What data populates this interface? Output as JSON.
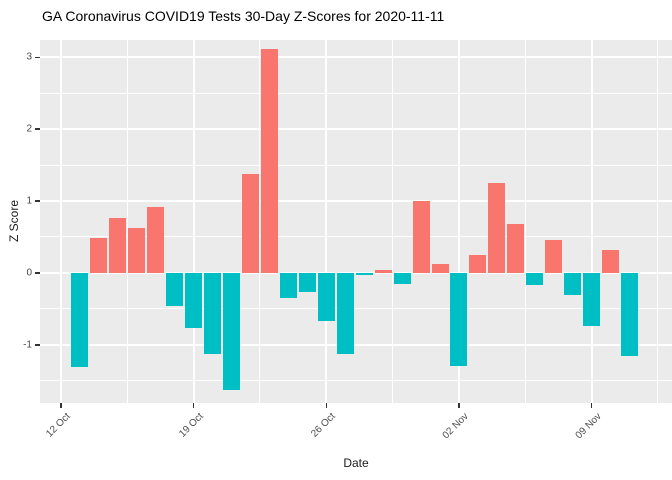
{
  "title": "GA Coronavirus COVID19 Tests 30-Day Z-Scores for 2020-11-11",
  "chart_data": {
    "type": "bar",
    "title": "GA Coronavirus COVID19 Tests 30-Day Z-Scores for 2020-11-11",
    "xlabel": "Date",
    "ylabel": "Z Score",
    "legend_position": "none",
    "grid": "major and minor white gridlines on grey panel",
    "ylim": [
      -1.81,
      3.24
    ],
    "y_major_ticks": [
      3,
      2,
      1,
      0,
      -1
    ],
    "y_minor_ticks": [
      2.5,
      1.5,
      0.5,
      -0.5,
      -1.5
    ],
    "x_ticks": [
      {
        "label": "12 Oct",
        "day": 0
      },
      {
        "label": "19 Oct",
        "day": 7
      },
      {
        "label": "26 Oct",
        "day": 14
      },
      {
        "label": "02 Nov",
        "day": 21
      },
      {
        "label": "09 Nov",
        "day": 28
      }
    ],
    "bars": [
      {
        "date": "13 Oct",
        "day": 1,
        "value": -1.31
      },
      {
        "date": "14 Oct",
        "day": 2,
        "value": 0.49
      },
      {
        "date": "15 Oct",
        "day": 3,
        "value": 0.77
      },
      {
        "date": "16 Oct",
        "day": 4,
        "value": 0.62
      },
      {
        "date": "17 Oct",
        "day": 5,
        "value": 0.92
      },
      {
        "date": "18 Oct",
        "day": 6,
        "value": -0.46
      },
      {
        "date": "19 Oct",
        "day": 7,
        "value": -0.76
      },
      {
        "date": "20 Oct",
        "day": 8,
        "value": -1.13
      },
      {
        "date": "21 Oct",
        "day": 9,
        "value": -1.63
      },
      {
        "date": "22 Oct",
        "day": 10,
        "value": 1.38
      },
      {
        "date": "23 Oct",
        "day": 11,
        "value": 3.11
      },
      {
        "date": "24 Oct",
        "day": 12,
        "value": -0.35
      },
      {
        "date": "25 Oct",
        "day": 13,
        "value": -0.27
      },
      {
        "date": "26 Oct",
        "day": 14,
        "value": -0.67
      },
      {
        "date": "27 Oct",
        "day": 15,
        "value": -1.13
      },
      {
        "date": "28 Oct",
        "day": 16,
        "value": -0.03
      },
      {
        "date": "29 Oct",
        "day": 17,
        "value": 0.04
      },
      {
        "date": "30 Oct",
        "day": 18,
        "value": -0.15
      },
      {
        "date": "31 Oct",
        "day": 19,
        "value": 1.0
      },
      {
        "date": "01 Nov",
        "day": 20,
        "value": 0.13
      },
      {
        "date": "02 Nov",
        "day": 21,
        "value": -1.3
      },
      {
        "date": "03 Nov",
        "day": 22,
        "value": 0.25
      },
      {
        "date": "04 Nov",
        "day": 23,
        "value": 1.25
      },
      {
        "date": "05 Nov",
        "day": 24,
        "value": 0.68
      },
      {
        "date": "06 Nov",
        "day": 25,
        "value": -0.17
      },
      {
        "date": "07 Nov",
        "day": 26,
        "value": 0.46
      },
      {
        "date": "08 Nov",
        "day": 27,
        "value": -0.31
      },
      {
        "date": "09 Nov",
        "day": 28,
        "value": -0.74
      },
      {
        "date": "10 Nov",
        "day": 29,
        "value": 0.32
      },
      {
        "date": "11 Nov",
        "day": 30,
        "value": -1.15
      }
    ],
    "colors": {
      "positive_bar": "#F8766D",
      "negative_bar": "#00BFC4",
      "panel_background": "#EBEBEB",
      "gridline": "#FFFFFF",
      "tick_text": "#4D4D4D",
      "title_text": "#000000"
    }
  }
}
